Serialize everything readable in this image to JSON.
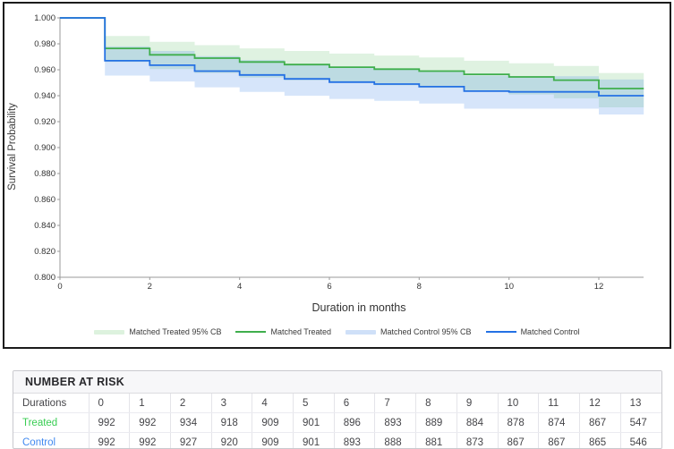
{
  "chart_data": {
    "type": "line",
    "subtype": "kaplan-meier-step-with-confidence-bands",
    "title": "",
    "xlabel": "Duration in months",
    "ylabel": "Survival Probability",
    "xlim": [
      0,
      13.3
    ],
    "ylim": [
      0.8,
      1.0
    ],
    "x_end": 13.0,
    "xticks": [
      "0",
      "2",
      "4",
      "6",
      "8",
      "10",
      "12"
    ],
    "yticks": [
      "1.000",
      "0.980",
      "0.960",
      "0.940",
      "0.920",
      "0.900",
      "0.880",
      "0.860",
      "0.840",
      "0.820",
      "0.800"
    ],
    "grid": false,
    "legend_position": "bottom",
    "series": [
      {
        "name": "Matched Treated",
        "color": "#3fae4c",
        "x": [
          0,
          1,
          2,
          3,
          4,
          5,
          6,
          7,
          8,
          9,
          10,
          11,
          12
        ],
        "y": [
          1.0,
          0.9765,
          0.9715,
          0.969,
          0.966,
          0.964,
          0.962,
          0.9605,
          0.959,
          0.9565,
          0.9545,
          0.952,
          0.9455
        ]
      },
      {
        "name": "Matched Control",
        "color": "#2471e4",
        "x": [
          0,
          1,
          2,
          3,
          4,
          5,
          6,
          7,
          8,
          9,
          10,
          11,
          12
        ],
        "y": [
          1.0,
          0.967,
          0.9635,
          0.959,
          0.956,
          0.953,
          0.9505,
          0.949,
          0.947,
          0.9435,
          0.943,
          0.943,
          0.94
        ]
      }
    ],
    "bands": [
      {
        "name": "Matched Treated 95% CB",
        "color": "rgba(96,190,105,0.20)",
        "x": [
          1,
          2,
          3,
          4,
          5,
          6,
          7,
          8,
          9,
          10,
          11,
          12
        ],
        "upper": [
          0.986,
          0.9815,
          0.979,
          0.9765,
          0.9745,
          0.9725,
          0.971,
          0.9695,
          0.967,
          0.965,
          0.963,
          0.9575
        ],
        "lower": [
          0.966,
          0.9605,
          0.9575,
          0.954,
          0.952,
          0.95,
          0.948,
          0.946,
          0.9435,
          0.941,
          0.938,
          0.931
        ]
      },
      {
        "name": "Matched Control 95% CB",
        "color": "rgba(70,135,230,0.22)",
        "x": [
          1,
          2,
          3,
          4,
          5,
          6,
          7,
          8,
          9,
          10,
          11,
          12
        ],
        "upper": [
          0.978,
          0.9745,
          0.9705,
          0.9675,
          0.9645,
          0.962,
          0.9605,
          0.9585,
          0.9555,
          0.955,
          0.955,
          0.9525
        ],
        "lower": [
          0.9555,
          0.951,
          0.9465,
          0.943,
          0.94,
          0.9375,
          0.936,
          0.934,
          0.93,
          0.93,
          0.93,
          0.9255
        ]
      }
    ],
    "legend": [
      {
        "label": "Matched Treated 95% CB",
        "swatch": "band",
        "color": "#ddf2de"
      },
      {
        "label": "Matched Treated",
        "swatch": "line",
        "color": "#3fae4c"
      },
      {
        "label": "Matched Control 95% CB",
        "swatch": "band",
        "color": "#cfe0f8"
      },
      {
        "label": "Matched Control",
        "swatch": "line",
        "color": "#2471e4"
      }
    ]
  },
  "risk_table": {
    "title": "NUMBER AT RISK",
    "header": [
      "Durations",
      "0",
      "1",
      "2",
      "3",
      "4",
      "5",
      "6",
      "7",
      "8",
      "9",
      "10",
      "11",
      "12",
      "13"
    ],
    "rows": [
      {
        "label": "Treated",
        "color": "#38cd52",
        "values": [
          992,
          992,
          934,
          918,
          909,
          901,
          896,
          893,
          889,
          884,
          878,
          874,
          867,
          547
        ]
      },
      {
        "label": "Control",
        "color": "#4189f0",
        "values": [
          992,
          992,
          927,
          920,
          909,
          901,
          893,
          888,
          881,
          873,
          867,
          867,
          865,
          546
        ]
      }
    ]
  }
}
